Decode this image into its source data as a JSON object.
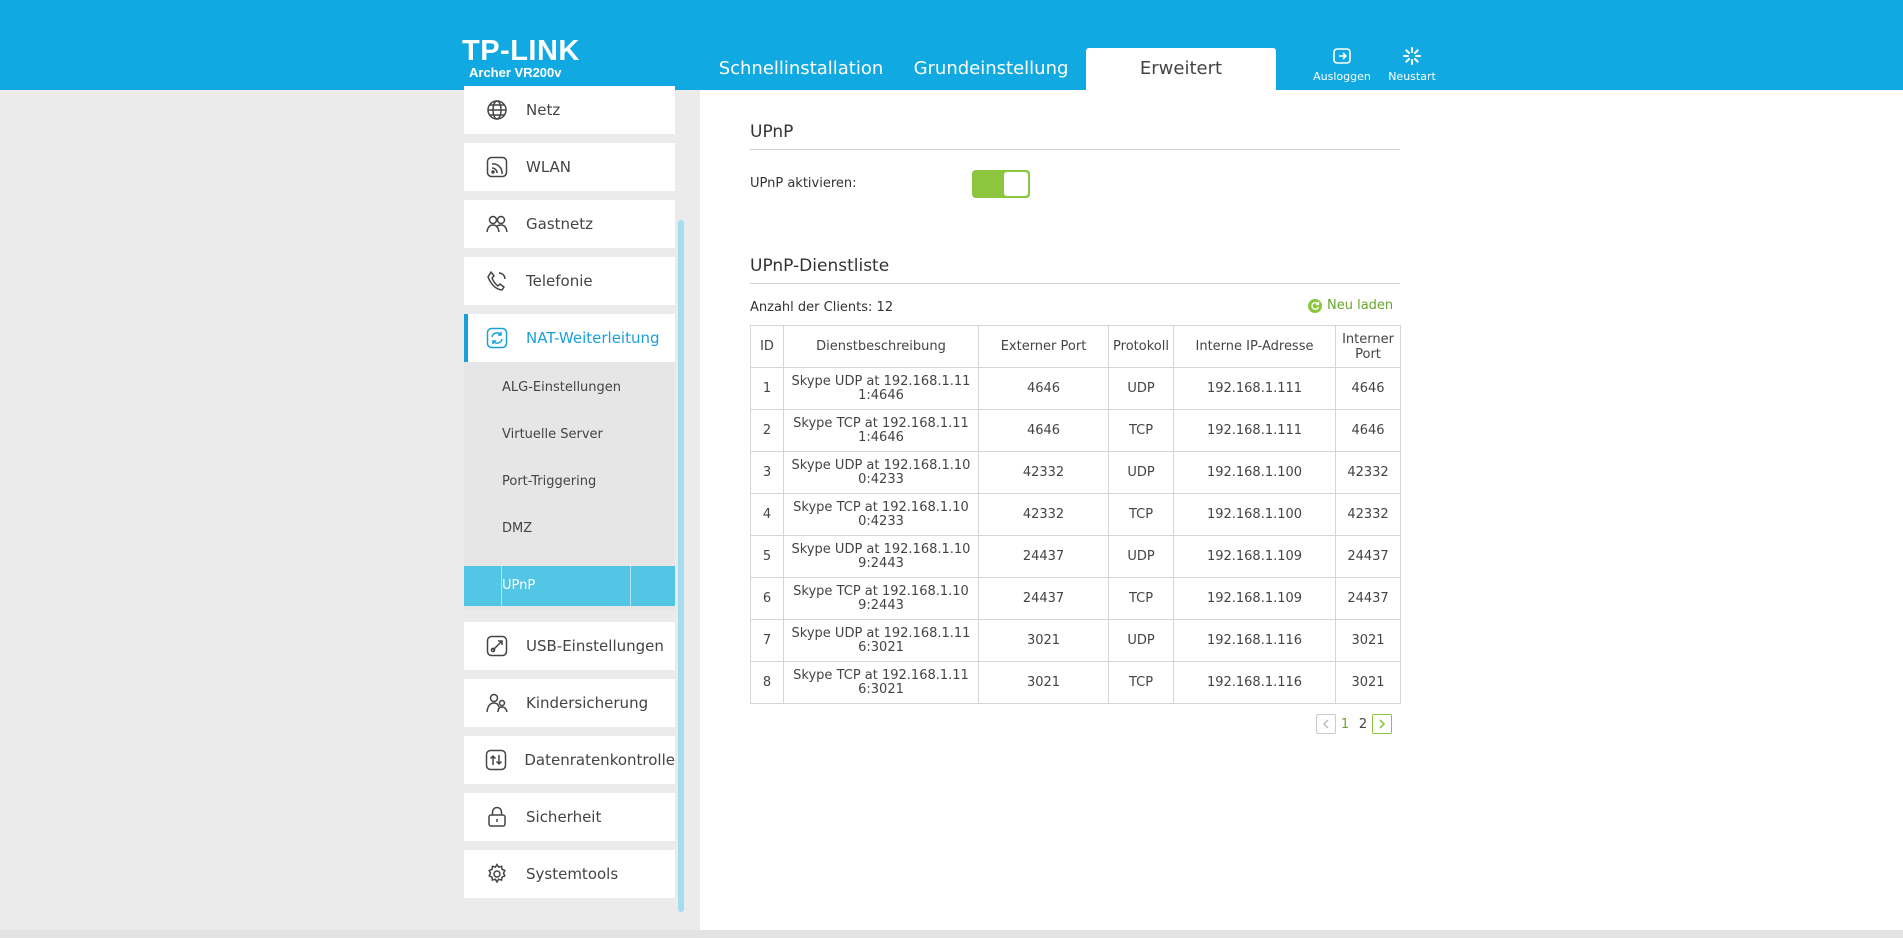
{
  "header": {
    "brand": "TP-LINK",
    "model": "Archer VR200v",
    "tabs": [
      {
        "label": "Schnellinstallation"
      },
      {
        "label": "Grundeinstellung"
      },
      {
        "label": "Erweitert"
      }
    ],
    "logout_label": "Ausloggen",
    "restart_label": "Neustart",
    "accent": "#11a9e1"
  },
  "sidebar": {
    "items_top": [
      {
        "label": "Netz",
        "icon": "globe-icon"
      },
      {
        "label": "WLAN",
        "icon": "wifi-icon"
      },
      {
        "label": "Gastnetz",
        "icon": "guests-icon"
      },
      {
        "label": "Telefonie",
        "icon": "phone-icon"
      },
      {
        "label": "NAT-Weiterleitung",
        "icon": "nat-forwarding-icon"
      }
    ],
    "subitems": [
      {
        "label": "ALG-Einstellungen"
      },
      {
        "label": "Virtuelle Server"
      },
      {
        "label": "Port-Triggering"
      },
      {
        "label": "DMZ"
      },
      {
        "label": "UPnP"
      }
    ],
    "items_bottom": [
      {
        "label": "USB-Einstellungen",
        "icon": "usb-icon"
      },
      {
        "label": "Kindersicherung",
        "icon": "parental-control-icon"
      },
      {
        "label": "Datenratenkontrolle",
        "icon": "bandwidth-icon"
      },
      {
        "label": "Sicherheit",
        "icon": "lock-icon"
      },
      {
        "label": "Systemtools",
        "icon": "gear-icon"
      }
    ]
  },
  "main": {
    "upnp_title": "UPnP",
    "enable_label": "UPnP aktivieren:",
    "enabled": true,
    "list_title": "UPnP-Dienstliste",
    "client_count_label": "Anzahl der Clients: 12",
    "reload_label": "Neu laden",
    "table": {
      "headers": {
        "id": "ID",
        "desc": "Dienstbeschreibung",
        "ext_port": "Externer Port",
        "protocol": "Protokoll",
        "int_ip": "Interne IP-Adresse",
        "int_port_1": "Interner",
        "int_port_2": "Port"
      },
      "rows": [
        {
          "id": "1",
          "desc1": "Skype UDP at 192.168.1.11",
          "desc2": "1:4646",
          "ext": "4646",
          "proto": "UDP",
          "ip": "192.168.1.111",
          "int": "4646"
        },
        {
          "id": "2",
          "desc1": "Skype TCP at 192.168.1.11",
          "desc2": "1:4646",
          "ext": "4646",
          "proto": "TCP",
          "ip": "192.168.1.111",
          "int": "4646"
        },
        {
          "id": "3",
          "desc1": "Skype UDP at 192.168.1.10",
          "desc2": "0:4233",
          "ext": "42332",
          "proto": "UDP",
          "ip": "192.168.1.100",
          "int": "42332"
        },
        {
          "id": "4",
          "desc1": "Skype TCP at 192.168.1.10",
          "desc2": "0:4233",
          "ext": "42332",
          "proto": "TCP",
          "ip": "192.168.1.100",
          "int": "42332"
        },
        {
          "id": "5",
          "desc1": "Skype UDP at 192.168.1.10",
          "desc2": "9:2443",
          "ext": "24437",
          "proto": "UDP",
          "ip": "192.168.1.109",
          "int": "24437"
        },
        {
          "id": "6",
          "desc1": "Skype TCP at 192.168.1.10",
          "desc2": "9:2443",
          "ext": "24437",
          "proto": "TCP",
          "ip": "192.168.1.109",
          "int": "24437"
        },
        {
          "id": "7",
          "desc1": "Skype UDP at 192.168.1.11",
          "desc2": "6:3021",
          "ext": "3021",
          "proto": "UDP",
          "ip": "192.168.1.116",
          "int": "3021"
        },
        {
          "id": "8",
          "desc1": "Skype TCP at 192.168.1.11",
          "desc2": "6:3021",
          "ext": "3021",
          "proto": "TCP",
          "ip": "192.168.1.116",
          "int": "3021"
        }
      ]
    },
    "pager": {
      "page1": "1",
      "page2": "2"
    },
    "toggle_color": "#8cc63f"
  }
}
